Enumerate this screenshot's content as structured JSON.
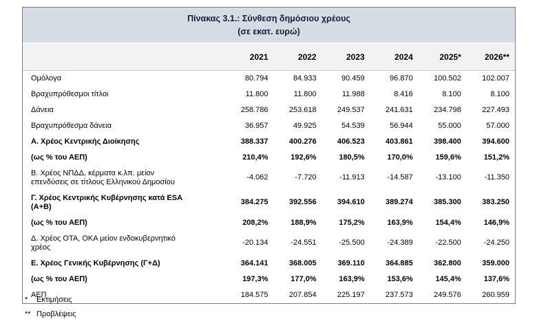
{
  "table": {
    "title": "Πίνακας 3.1.: Σύνθεση δημόσιου χρέους",
    "subtitle": "(σε εκατ. ευρώ)",
    "columns": [
      "2021",
      "2022",
      "2023",
      "2024",
      "2025*",
      "2026**"
    ],
    "rows": [
      {
        "label": "Ομόλογα",
        "bold": false,
        "values": [
          "80.794",
          "84.933",
          "90.459",
          "96.870",
          "100.502",
          "102.007"
        ]
      },
      {
        "label": "Βραχυπρόθεσμοι τίτλοι",
        "bold": false,
        "values": [
          "11.800",
          "11.800",
          "11.988",
          "8.416",
          "8.100",
          "8.100"
        ]
      },
      {
        "label": "Δάνεια",
        "bold": false,
        "values": [
          "258.786",
          "253.618",
          "249.537",
          "241.631",
          "234.798",
          "227.493"
        ]
      },
      {
        "label": "Βραχυπρόθεσμα δάνεια",
        "bold": false,
        "values": [
          "36.957",
          "49.925",
          "54.539",
          "56.944",
          "55.000",
          "57.000"
        ]
      },
      {
        "label": "Α. Χρέος Κεντρικής Διοίκησης",
        "bold": true,
        "values": [
          "388.337",
          "400.276",
          "406.523",
          "403.861",
          "398.400",
          "394.600"
        ]
      },
      {
        "label": "(ως % του ΑΕΠ)",
        "bold": true,
        "values": [
          "210,4%",
          "192,6%",
          "180,5%",
          "170,0%",
          "159,6%",
          "151,2%"
        ]
      },
      {
        "label": "Β. Χρέος ΝΠΔΔ, κέρματα κ.λπ. μείον\nεπενδύσεις σε τίτλους Ελληνικού Δημοσίου",
        "bold": false,
        "values": [
          "-4.062",
          "-7.720",
          "-11.913",
          "-14.587",
          "-13.100",
          "-11.350"
        ]
      },
      {
        "label": "Γ. Χρέος Κεντρικής Κυβέρνησης κατά ESA\n(Α+Β)",
        "bold": true,
        "values": [
          "384.275",
          "392.556",
          "394.610",
          "389.274",
          "385.300",
          "383.250"
        ]
      },
      {
        "label": "(ως % του ΑΕΠ)",
        "bold": true,
        "values": [
          "208,2%",
          "188,9%",
          "175,2%",
          "163,9%",
          "154,4%",
          "146,9%"
        ]
      },
      {
        "label": "Δ. Χρέος ΟΤΑ, ΟΚΑ μείον ενδοκυβερνητικό\nχρέος",
        "bold": false,
        "values": [
          "-20.134",
          "-24.551",
          "-25.500",
          "-24.389",
          "-22.500",
          "-24.250"
        ]
      },
      {
        "label": "Ε. Χρέος Γενικής Κυβέρνησης (Γ+Δ)",
        "bold": true,
        "values": [
          "364.141",
          "368.005",
          "369.110",
          "364.885",
          "362.800",
          "359.000"
        ]
      },
      {
        "label": "(ως % του ΑΕΠ)",
        "bold": true,
        "values": [
          "197,3%",
          "177,0%",
          "163,9%",
          "153,6%",
          "145,4%",
          "137,6%"
        ]
      },
      {
        "label": "ΑΕΠ",
        "bold": false,
        "values": [
          "184.575",
          "207.854",
          "225.197",
          "237.573",
          "249.576",
          "260.959"
        ]
      }
    ],
    "footnotes": [
      {
        "marker": "*",
        "text": "Εκτιμήσεις"
      },
      {
        "marker": "**",
        "text": "Προβλέψεις"
      }
    ],
    "colors": {
      "title_band_bg": "#d6dce4",
      "header_row_bg": "#f2f2f4",
      "outer_border": "#7a7a7a",
      "title_text": "#121f3d",
      "body_text": "#000000"
    }
  }
}
